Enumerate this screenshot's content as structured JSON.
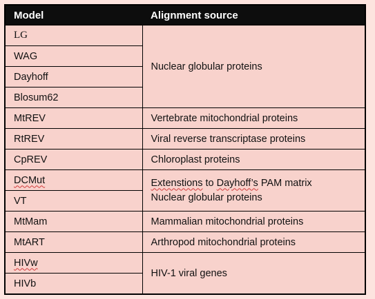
{
  "header": {
    "col_model": "Model",
    "col_source": "Alignment source"
  },
  "rows": {
    "lg": "LG",
    "wag": "WAG",
    "dayhoff": "Dayhoff",
    "blosum62": "Blosum62",
    "group1_source": "Nuclear globular proteins",
    "mtrev": "MtREV",
    "mtrev_source": "Vertebrate mitochondrial proteins",
    "rtrev": "RtREV",
    "rtrev_source": "Viral reverse transcriptase proteins",
    "cprev": "CpREV",
    "cprev_source": "Chloroplast proteins",
    "dcmut": "DCMut",
    "vt": "VT",
    "dcmut_source_prefix": "Extenstions",
    "dcmut_source_mid": " to ",
    "dcmut_source_dayhoffs": "Dayhoff’s",
    "dcmut_source_suffix": " PAM matrix",
    "vt_source": "Nuclear globular proteins",
    "mtmam": "MtMam",
    "mtmam_source": "Mammalian mitochondrial proteins",
    "mtart": "MtART",
    "mtart_source": "Arthropod mitochondrial proteins",
    "hivw": "HIVw",
    "hivb": "HIVb",
    "hiv_source": "HIV-1 viral genes"
  }
}
